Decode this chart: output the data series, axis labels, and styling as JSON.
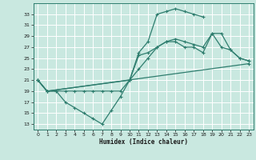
{
  "xlabel": "Humidex (Indice chaleur)",
  "bg_color": "#c9e8e0",
  "grid_color": "#ffffff",
  "line_color": "#2e7d6e",
  "xlim": [
    -0.5,
    23.5
  ],
  "ylim": [
    12.0,
    35.0
  ],
  "xticks": [
    0,
    1,
    2,
    3,
    4,
    5,
    6,
    7,
    8,
    9,
    10,
    11,
    12,
    13,
    14,
    15,
    16,
    17,
    18,
    19,
    20,
    21,
    22,
    23
  ],
  "yticks": [
    13,
    15,
    17,
    19,
    21,
    23,
    25,
    27,
    29,
    31,
    33
  ],
  "line1_x": [
    0,
    1,
    2,
    3,
    4,
    5,
    6,
    7,
    8,
    9,
    10,
    11,
    12,
    13,
    14,
    15,
    16,
    17,
    18
  ],
  "line1_y": [
    21,
    19,
    19,
    17,
    16,
    15,
    14,
    13,
    15.5,
    18,
    21,
    26,
    28,
    33,
    33.5,
    34,
    33.5,
    33,
    32.5
  ],
  "line2_x": [
    0,
    1,
    2,
    3,
    4,
    5,
    6,
    7,
    8,
    9,
    10,
    11,
    12,
    13,
    14,
    15,
    16,
    17,
    18,
    19,
    20,
    21,
    22,
    23
  ],
  "line2_y": [
    21,
    19,
    19,
    19,
    19,
    19,
    19,
    19,
    19,
    19,
    21,
    25.5,
    26,
    27,
    28,
    28,
    27,
    27,
    26,
    29.5,
    27,
    26.5,
    25,
    24.5
  ],
  "line3_x": [
    0,
    1,
    23
  ],
  "line3_y": [
    21,
    19,
    24
  ],
  "line4_x": [
    0,
    1,
    10,
    11,
    12,
    13,
    14,
    15,
    16,
    17,
    18,
    19,
    20,
    21,
    22,
    23
  ],
  "line4_y": [
    21,
    19,
    21,
    23,
    25,
    27,
    28,
    28.5,
    28,
    27.5,
    27,
    29.5,
    29.5,
    26.5,
    25,
    24.5
  ]
}
